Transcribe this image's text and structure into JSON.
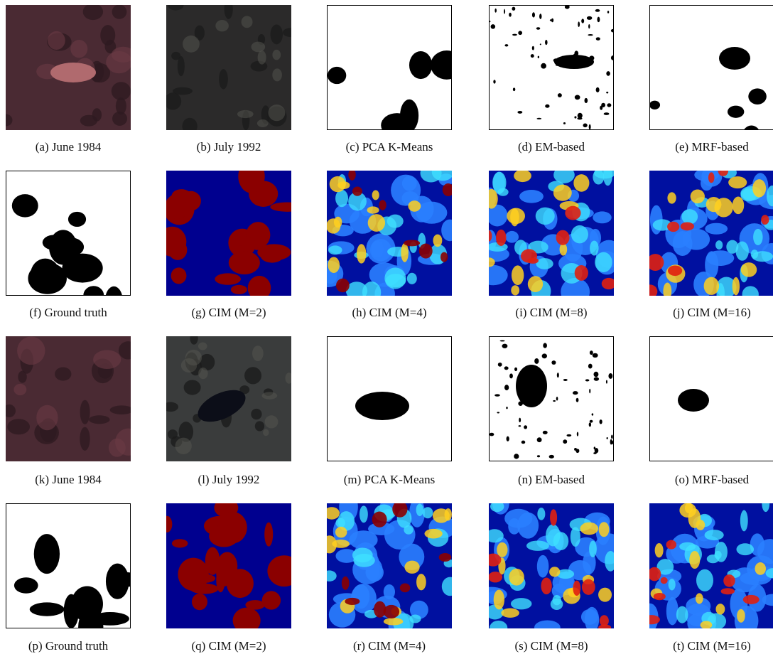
{
  "figure": {
    "panels": [
      {
        "caption": "(a) June 1984"
      },
      {
        "caption": "(b) July 1992"
      },
      {
        "caption": "(c) PCA K-Means"
      },
      {
        "caption": "(d) EM-based"
      },
      {
        "caption": "(e) MRF-based"
      },
      {
        "caption": "(f) Ground truth"
      },
      {
        "caption": "(g) CIM (M=2)"
      },
      {
        "caption": "(h) CIM (M=4)"
      },
      {
        "caption": "(i) CIM (M=8)"
      },
      {
        "caption": "(j) CIM (M=16)"
      },
      {
        "caption": "(k) June 1984"
      },
      {
        "caption": "(l) July 1992"
      },
      {
        "caption": "(m) PCA K-Means"
      },
      {
        "caption": "(n) EM-based"
      },
      {
        "caption": "(o) MRF-based"
      },
      {
        "caption": "(p) Ground truth"
      },
      {
        "caption": "(q) CIM (M=2)"
      },
      {
        "caption": "(r) CIM (M=4)"
      },
      {
        "caption": "(s) CIM (M=8)"
      },
      {
        "caption": "(t) CIM (M=16)"
      }
    ]
  }
}
